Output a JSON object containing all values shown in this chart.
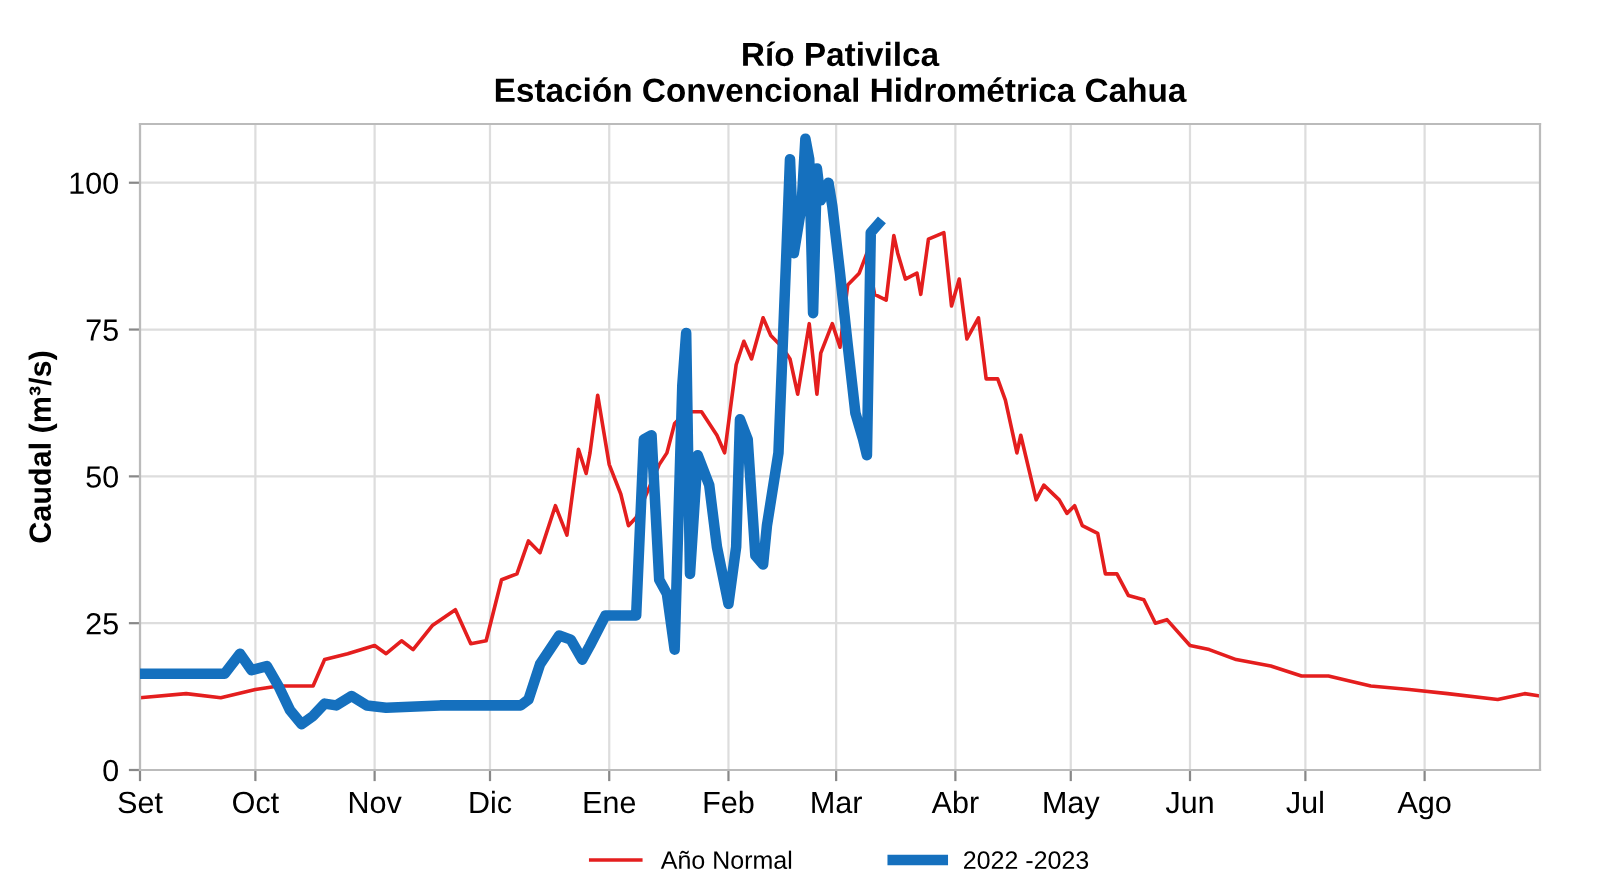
{
  "chart_data": {
    "type": "line",
    "title": "Río Pativilca\nEstación Convencional Hidrométrica Cahua",
    "ylabel": "Caudal (m³/s)",
    "xlim": [
      "2022-09-01",
      "2023-08-31"
    ],
    "xticks": [
      {
        "value": "2022-09-01",
        "label": "Set"
      },
      {
        "value": "2022-10-01",
        "label": "Oct"
      },
      {
        "value": "2022-11-01",
        "label": "Nov"
      },
      {
        "value": "2022-12-01",
        "label": "Dic"
      },
      {
        "value": "2023-01-01",
        "label": "Ene"
      },
      {
        "value": "2023-02-01",
        "label": "Feb"
      },
      {
        "value": "2023-03-01",
        "label": "Mar"
      },
      {
        "value": "2023-04-01",
        "label": "Abr"
      },
      {
        "value": "2023-05-01",
        "label": "May"
      },
      {
        "value": "2023-06-01",
        "label": "Jun"
      },
      {
        "value": "2023-07-01",
        "label": "Jul"
      },
      {
        "value": "2023-08-01",
        "label": "Ago"
      }
    ],
    "ylim": [
      0,
      110
    ],
    "yticks": [
      0,
      25,
      50,
      75,
      100
    ],
    "grid": true,
    "legend": "bottom",
    "line_style": "solid",
    "marker": "none",
    "series": [
      {
        "name": "Año Normal",
        "color": "#e41e1e",
        "x": [
          "2022-09-01",
          "2022-09-13",
          "2022-09-22",
          "2022-10-01",
          "2022-10-07",
          "2022-10-16",
          "2022-10-19",
          "2022-10-25",
          "2022-11-01",
          "2022-11-04",
          "2022-11-08",
          "2022-11-11",
          "2022-11-16",
          "2022-11-22",
          "2022-11-26",
          "2022-11-30",
          "2022-12-04",
          "2022-12-08",
          "2022-12-11",
          "2022-12-14",
          "2022-12-18",
          "2022-12-21",
          "2022-12-24",
          "2022-12-26",
          "2022-12-27",
          "2022-12-29",
          "2023-01-01",
          "2023-01-04",
          "2023-01-06",
          "2023-01-08",
          "2023-01-14",
          "2023-01-16",
          "2023-01-18",
          "2023-01-21",
          "2023-01-25",
          "2023-01-29",
          "2023-01-31",
          "2023-02-03",
          "2023-02-05",
          "2023-02-07",
          "2023-02-10",
          "2023-02-12",
          "2023-02-15",
          "2023-02-17",
          "2023-02-19",
          "2023-02-22",
          "2023-02-24",
          "2023-02-25",
          "2023-02-28",
          "2023-03-02",
          "2023-03-04",
          "2023-03-07",
          "2023-03-09",
          "2023-03-11",
          "2023-03-14",
          "2023-03-16",
          "2023-03-17",
          "2023-03-19",
          "2023-03-22",
          "2023-03-23",
          "2023-03-25",
          "2023-03-29",
          "2023-03-31",
          "2023-04-02",
          "2023-04-04",
          "2023-04-07",
          "2023-04-09",
          "2023-04-12",
          "2023-04-14",
          "2023-04-17",
          "2023-04-18",
          "2023-04-22",
          "2023-04-24",
          "2023-04-28",
          "2023-04-30",
          "2023-05-02",
          "2023-05-04",
          "2023-05-08",
          "2023-05-10",
          "2023-05-13",
          "2023-05-16",
          "2023-05-20",
          "2023-05-23",
          "2023-05-26",
          "2023-06-01",
          "2023-06-06",
          "2023-06-13",
          "2023-06-22",
          "2023-06-30",
          "2023-07-07",
          "2023-07-18",
          "2023-07-28",
          "2023-08-07",
          "2023-08-20",
          "2023-08-27",
          "2023-08-31"
        ],
        "values": [
          12.3,
          13,
          12.3,
          13.7,
          14.3,
          14.3,
          18.8,
          19.8,
          21.2,
          19.8,
          22,
          20.5,
          24.6,
          27.3,
          21.5,
          22,
          32.4,
          33.4,
          39,
          37,
          45,
          40,
          54.6,
          50.5,
          54,
          63.8,
          52,
          47,
          41.6,
          43,
          52,
          54,
          59,
          61,
          61,
          57,
          54,
          69,
          73,
          70,
          77,
          74,
          72,
          70,
          64,
          76,
          64,
          71,
          76,
          72,
          82.6,
          84.6,
          88,
          81,
          80,
          91,
          88,
          83.6,
          84.6,
          81,
          90.4,
          91.5,
          79,
          83.6,
          73.4,
          77,
          66.6,
          66.6,
          63,
          54,
          57,
          46,
          48.5,
          46,
          43.7,
          45,
          41.6,
          40.3,
          33.4,
          33.4,
          29.7,
          29,
          25,
          25.6,
          21.2,
          20.5,
          18.8,
          17.7,
          16,
          16,
          14.3,
          13.7,
          13,
          12,
          13,
          12.6
        ]
      },
      {
        "name": "2022 -2023",
        "color": "#1570be",
        "x": [
          "2022-09-01",
          "2022-09-23",
          "2022-09-27",
          "2022-09-30",
          "2022-10-04",
          "2022-10-07",
          "2022-10-10",
          "2022-10-13",
          "2022-10-16",
          "2022-10-19",
          "2022-10-22",
          "2022-10-26",
          "2022-10-30",
          "2022-11-04",
          "2022-11-18",
          "2022-12-09",
          "2022-12-11",
          "2022-12-14",
          "2022-12-19",
          "2022-12-22",
          "2022-12-25",
          "2022-12-27",
          "2022-12-31",
          "2023-01-08",
          "2023-01-10",
          "2023-01-12",
          "2023-01-14",
          "2023-01-16",
          "2023-01-18",
          "2023-01-20",
          "2023-01-21",
          "2023-01-22",
          "2023-01-24",
          "2023-01-27",
          "2023-01-29",
          "2023-02-01",
          "2023-02-03",
          "2023-02-04",
          "2023-02-06",
          "2023-02-08",
          "2023-02-10",
          "2023-02-11",
          "2023-02-14",
          "2023-02-16",
          "2023-02-17",
          "2023-02-18",
          "2023-02-20",
          "2023-02-21",
          "2023-02-22",
          "2023-02-23",
          "2023-02-24",
          "2023-02-25",
          "2023-02-27",
          "2023-02-28",
          "2023-03-02",
          "2023-03-04",
          "2023-03-06",
          "2023-03-08",
          "2023-03-09",
          "2023-03-10",
          "2023-03-12"
        ],
        "values": [
          16.4,
          16.4,
          19.8,
          17,
          17.7,
          14.3,
          10.2,
          7.8,
          9.2,
          11.3,
          11,
          12.6,
          11,
          10.6,
          11,
          11,
          12,
          18,
          22.9,
          22.2,
          18.8,
          21.2,
          26.3,
          26.3,
          56.3,
          57,
          32.4,
          30,
          20.5,
          65.5,
          74.4,
          33.4,
          53.6,
          48.5,
          38,
          28.3,
          38,
          59.7,
          56.3,
          36.5,
          35,
          41.6,
          54,
          87,
          104,
          88,
          96,
          107.5,
          104,
          77.8,
          102.4,
          97,
          100,
          96,
          84.6,
          72.4,
          60.8,
          56.3,
          53.6,
          91.5,
          93
        ]
      }
    ]
  }
}
